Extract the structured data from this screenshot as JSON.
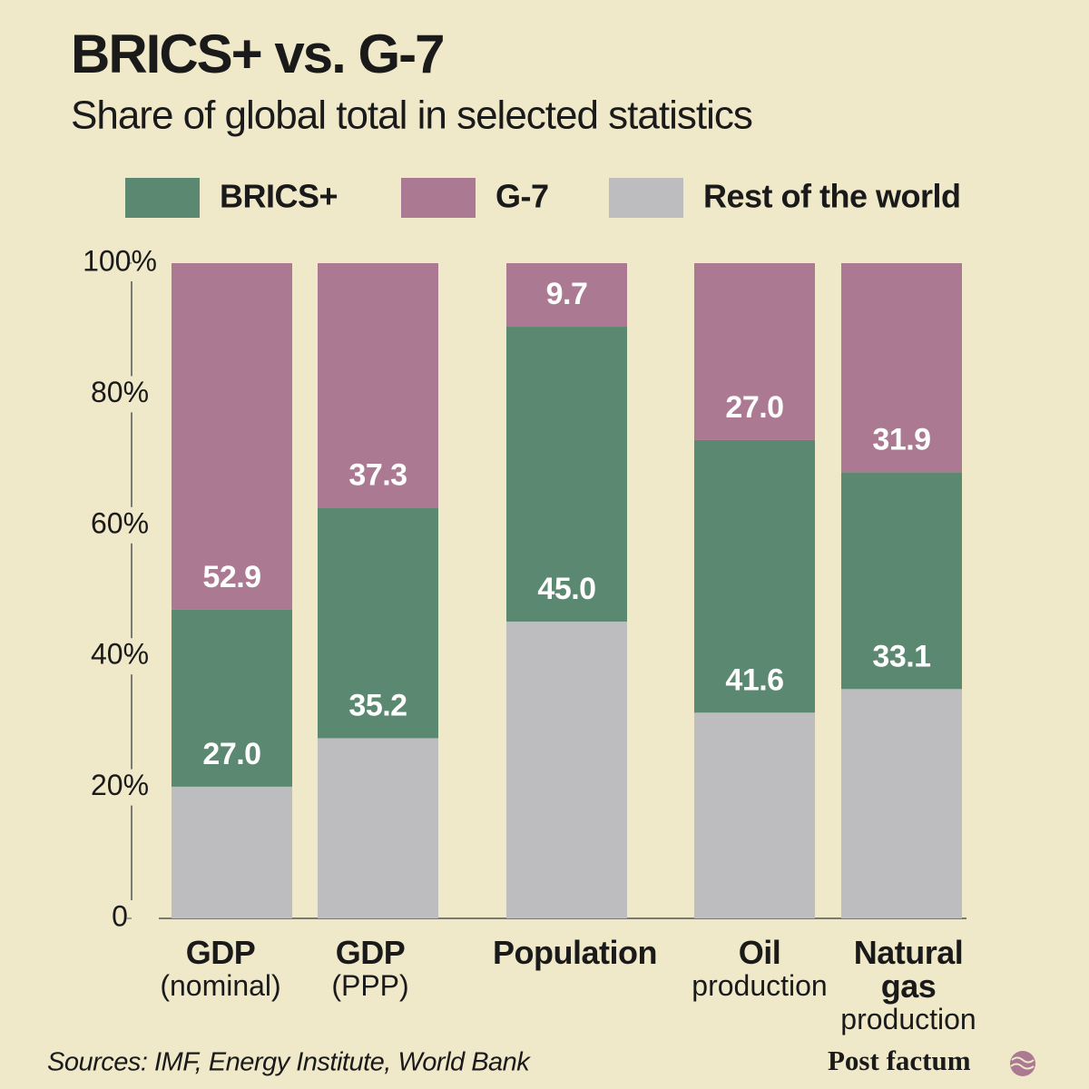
{
  "chart_data": {
    "type": "stacked_bar",
    "title": "BRICS+ vs. G-7",
    "subtitle": "Share of global total in selected statistics",
    "categories": [
      {
        "name": "GDP",
        "detail": "(nominal)"
      },
      {
        "name": "GDP",
        "detail": "(PPP)"
      },
      {
        "name": "Population"
      },
      {
        "name": "Oil",
        "detail": "production"
      },
      {
        "name": "Natural gas",
        "detail": "production"
      }
    ],
    "series": [
      {
        "name": "Rest of the world",
        "color": "#bdbdbf",
        "values": [
          20.1,
          27.5,
          45.3,
          31.4,
          35.0
        ]
      },
      {
        "name": "BRICS+",
        "color": "#5b8870",
        "values": [
          27.0,
          35.2,
          45.0,
          41.6,
          33.1
        ],
        "value_labels": [
          "27.0",
          "35.2",
          "45.0",
          "41.6",
          "33.1"
        ]
      },
      {
        "name": "G-7",
        "color": "#ab7a92",
        "values": [
          52.9,
          37.3,
          9.7,
          27.0,
          31.9
        ],
        "value_labels": [
          "52.9",
          "37.3",
          "9.7",
          "27.0",
          "31.9"
        ]
      }
    ],
    "legend_order": [
      1,
      2,
      0
    ],
    "ylim": [
      0,
      100
    ],
    "yticks": [
      0,
      {
        "value": 20,
        "label": "20%"
      },
      {
        "value": 40,
        "label": "40%"
      },
      {
        "value": 60,
        "label": "60%"
      },
      {
        "value": 80,
        "label": "80%"
      },
      {
        "value": 100,
        "label": "100%"
      }
    ],
    "source": "Sources: IMF, Energy Institute, World Bank",
    "brand": "Post factum"
  }
}
